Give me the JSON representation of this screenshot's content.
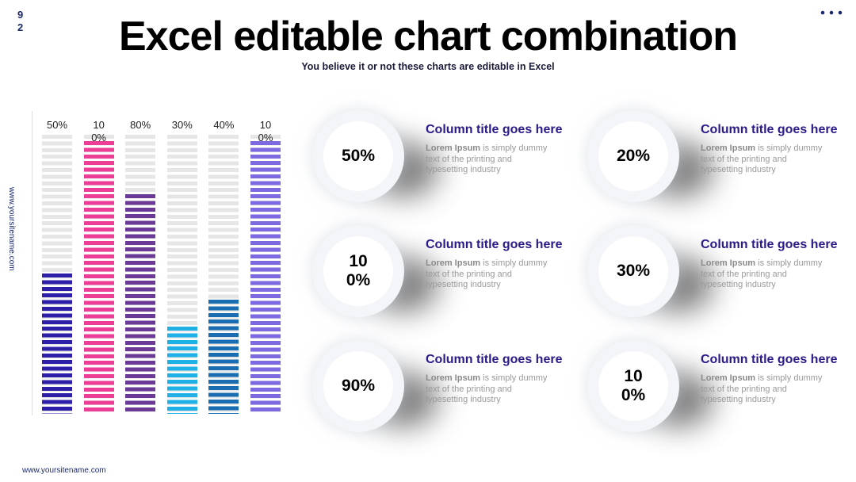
{
  "page_number": "92",
  "title": "Excel editable chart combination",
  "subtitle": "You believe it or not these charts are editable in Excel",
  "side_site": "www.yoursitename.com",
  "footer_site": "www.yoursitename.com",
  "chart_data": {
    "type": "bar",
    "categories": [
      null,
      null,
      null,
      null,
      null,
      null
    ],
    "values": [
      50,
      100,
      80,
      30,
      40,
      100
    ],
    "value_labels": [
      "50%",
      "100%",
      "80%",
      "30%",
      "40%",
      "100%"
    ],
    "colors": [
      "#2e1fa8",
      "#ee3d96",
      "#6a3a96",
      "#1fb0e6",
      "#1a6db0",
      "#7e6ae0"
    ],
    "ylim": [
      0,
      100
    ]
  },
  "cards": [
    {
      "value": "50%",
      "title": "Column title goes here",
      "lead": "Lorem Ipsum",
      "body": " is simply dummy text of the printing and typesetting industry"
    },
    {
      "value": "20%",
      "title": "Column title goes here",
      "lead": "Lorem Ipsum",
      "body": " is simply dummy text of the printing and typesetting industry"
    },
    {
      "value": "100%",
      "title": "Column title goes here",
      "lead": "Lorem Ipsum",
      "body": " is simply dummy text of the printing and typesetting industry"
    },
    {
      "value": "30%",
      "title": "Column title goes here",
      "lead": "Lorem Ipsum",
      "body": " is simply dummy text of the printing and typesetting industry"
    },
    {
      "value": "90%",
      "title": "Column title goes here",
      "lead": "Lorem Ipsum",
      "body": " is simply dummy text of the printing and typesetting industry"
    },
    {
      "value": "100%",
      "title": "Column title goes here",
      "lead": "Lorem Ipsum",
      "body": " is simply dummy text of the printing and typesetting industry"
    }
  ]
}
